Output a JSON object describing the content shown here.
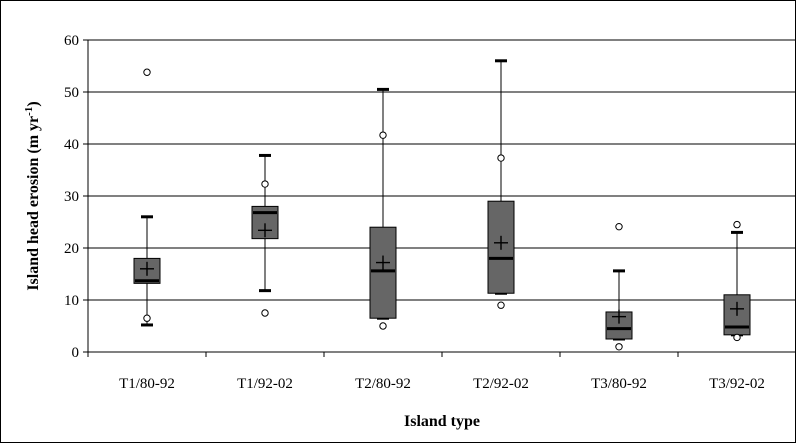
{
  "chart_data": {
    "type": "boxplot",
    "title": "",
    "xlabel": "Island type",
    "ylabel": "Island head erosion (m yr",
    "ylabel_superscript": "-1",
    "ylabel_close": ")",
    "ylim": [
      0,
      60
    ],
    "yticks": [
      0,
      10,
      20,
      30,
      40,
      50,
      60
    ],
    "grid": true,
    "legend": "none",
    "colors": {
      "box": "#666666",
      "outline": "#000000",
      "grid": "#000000"
    },
    "categories": [
      "T1/80-92",
      "T1/92-02",
      "T2/80-92",
      "T2/92-02",
      "T3/80-92",
      "T3/92-02"
    ],
    "boxes": [
      {
        "category": "T1/80-92",
        "q1": 13.2,
        "median": 13.7,
        "q3": 18.0,
        "mean": 16.0,
        "whisker_low": 5.2,
        "whisker_high": 26.0,
        "outlier_low": 6.5,
        "outlier_high": 53.8
      },
      {
        "category": "T1/92-02",
        "q1": 21.8,
        "median": 26.8,
        "q3": 28.0,
        "mean": 23.4,
        "whisker_low": 11.8,
        "whisker_high": 37.8,
        "outlier_low": 7.5,
        "outlier_high": 32.3
      },
      {
        "category": "T2/80-92",
        "q1": 6.5,
        "median": 15.6,
        "q3": 24.0,
        "mean": 17.2,
        "whisker_low": 6.5,
        "whisker_high": 50.5,
        "outlier_low": 5.0,
        "outlier_high": 41.7
      },
      {
        "category": "T2/92-02",
        "q1": 11.3,
        "median": 18.0,
        "q3": 29.0,
        "mean": 21.0,
        "whisker_low": 11.3,
        "whisker_high": 56.0,
        "outlier_low": 9.0,
        "outlier_high": 37.3
      },
      {
        "category": "T3/80-92",
        "q1": 2.5,
        "median": 4.5,
        "q3": 7.7,
        "mean": 6.8,
        "whisker_low": 2.5,
        "whisker_high": 15.6,
        "outlier_low": 1.0,
        "outlier_high": 24.1
      },
      {
        "category": "T3/92-02",
        "q1": 3.3,
        "median": 4.8,
        "q3": 11.0,
        "mean": 8.3,
        "whisker_low": 3.3,
        "whisker_high": 23.0,
        "outlier_low": 2.8,
        "outlier_high": 24.5
      }
    ]
  }
}
